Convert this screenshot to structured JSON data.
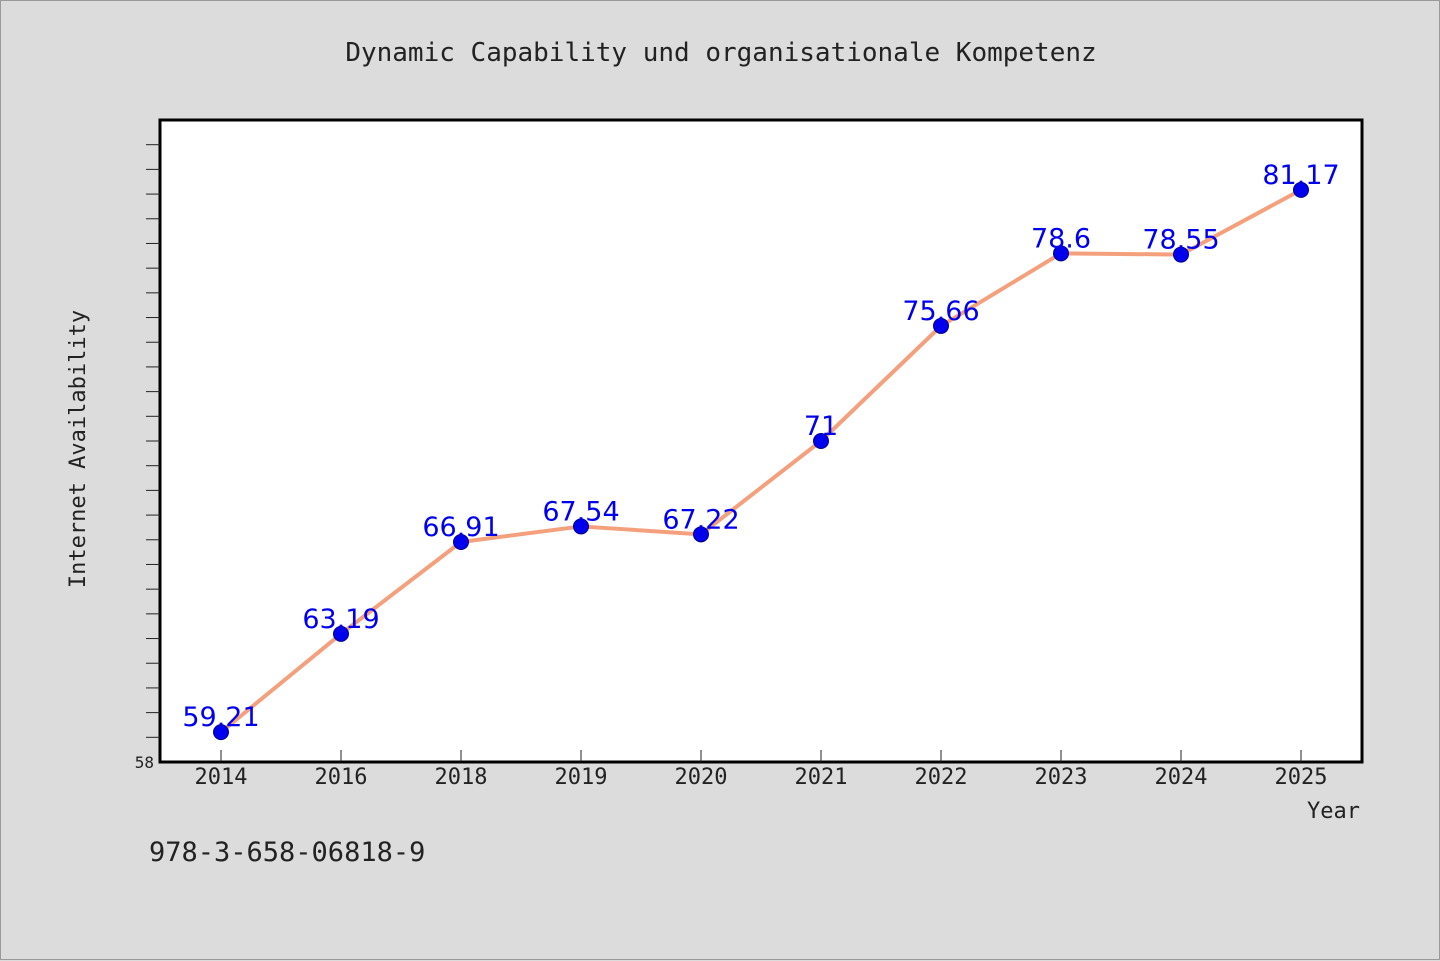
{
  "chart_data": {
    "type": "line",
    "title": "Dynamic Capability und organisationale Kompetenz",
    "xlabel": "Year",
    "ylabel": "Internet Availability",
    "categories": [
      "2014",
      "2016",
      "2018",
      "2019",
      "2020",
      "2021",
      "2022",
      "2023",
      "2024",
      "2025"
    ],
    "series": [
      {
        "values": [
          59.21,
          63.19,
          66.91,
          67.54,
          67.22,
          71,
          75.66,
          78.6,
          78.55,
          81.17
        ],
        "data_labels": [
          "59.21",
          "63.19",
          "66.91",
          "67.54",
          "67.22",
          "71",
          "75.66",
          "78.6",
          "78.55",
          "81.17"
        ]
      }
    ],
    "ylim": [
      58,
      84
    ],
    "y_tick_labels": [
      "58"
    ],
    "grid": false,
    "colors": {
      "line": "#f4a07c",
      "marker": "#0000ee",
      "data_label": "#0000ee",
      "plot_background": "#ffffff",
      "page_background": "#dcdcdc"
    }
  },
  "footer": {
    "isbn": "978-3-658-06818-9"
  }
}
